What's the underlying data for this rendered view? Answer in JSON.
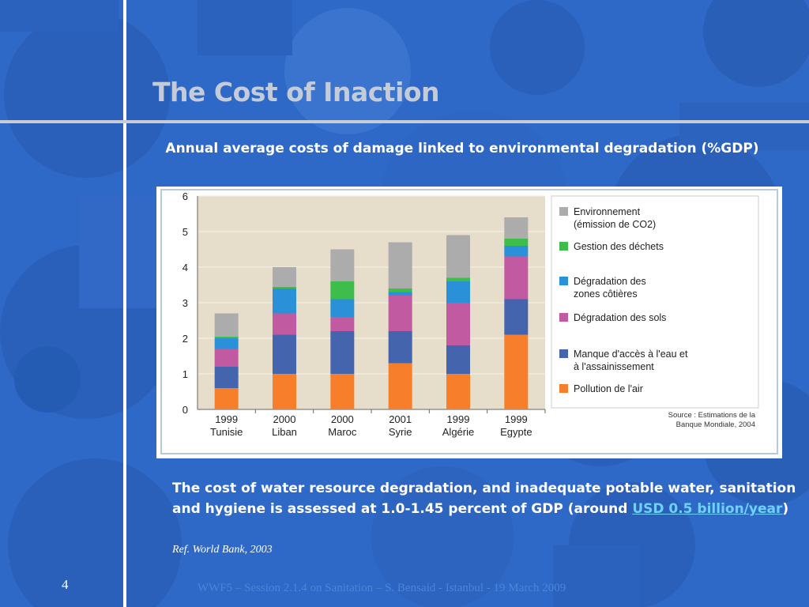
{
  "slide": {
    "title": "The Cost of Inaction",
    "subtitle": "Annual average costs of damage linked to environmental degradation (%GDP)",
    "body_text_1": "The cost of water resource degradation, and inadequate potable water, sanitation and hygiene is assessed at 1.0-1.45 percent of GDP (around ",
    "body_highlight": "USD 0.5 billion/year",
    "body_text_2": ")",
    "reference": "Ref. World Bank, 2003",
    "page_number": "4",
    "footer": "WWF5 – Session 2.1.4 on Sanitation – S. Bensaid - Istanbul - 19 March 2009"
  },
  "colors": {
    "background": "#2f69c8",
    "title": "#c4ccd9",
    "highlight": "#6fd1ff",
    "plot_background": "#e6decb"
  },
  "chart_data": {
    "type": "bar",
    "stacked": true,
    "ylim": [
      0,
      6
    ],
    "yticks": [
      "0",
      "1",
      "2",
      "3",
      "4",
      "5",
      "6"
    ],
    "categories": [
      [
        "1999",
        "Tunisie"
      ],
      [
        "2000",
        "Liban"
      ],
      [
        "2000",
        "Maroc"
      ],
      [
        "2001",
        "Syrie"
      ],
      [
        "1999",
        "Algérie"
      ],
      [
        "1999",
        "Egypte"
      ]
    ],
    "series": [
      {
        "name": "Pollution de l'air",
        "color": "#f77f2b",
        "values": [
          0.6,
          1.0,
          1.0,
          1.3,
          1.0,
          2.1
        ]
      },
      {
        "name": "Manque d'accès à l'eau et à l'assainissement",
        "color": "#4464ad",
        "values": [
          0.6,
          1.1,
          1.2,
          0.9,
          0.8,
          1.0
        ]
      },
      {
        "name": "Dégradation des sols",
        "color": "#c15aa1",
        "values": [
          0.5,
          0.6,
          0.4,
          1.0,
          1.2,
          1.2
        ]
      },
      {
        "name": "Dégradation des zones côtières",
        "color": "#2a91d8",
        "values": [
          0.3,
          0.7,
          0.5,
          0.1,
          0.6,
          0.3
        ]
      },
      {
        "name": "Gestion des déchets",
        "color": "#3fbd4a",
        "values": [
          0.05,
          0.05,
          0.5,
          0.1,
          0.1,
          0.2
        ]
      },
      {
        "name": "Environnement (émission de CO2)",
        "color": "#acacac",
        "values": [
          0.65,
          0.55,
          0.9,
          1.3,
          1.2,
          0.6
        ]
      }
    ],
    "legend_order": [
      5,
      4,
      3,
      2,
      1,
      0
    ],
    "legend_labels": [
      [
        "Environnement",
        "(émission de CO2)"
      ],
      [
        "Gestion des déchets"
      ],
      [
        "Dégradation des",
        "zones côtières"
      ],
      [
        "Dégradation des sols"
      ],
      [
        "Manque d'accès à l'eau et",
        "à l'assainissement"
      ],
      [
        "Pollution de l'air"
      ]
    ],
    "source_lines": [
      "Source : Estimations de la",
      "Banque Mondiale, 2004"
    ],
    "grid": true,
    "legend_position": "right"
  }
}
